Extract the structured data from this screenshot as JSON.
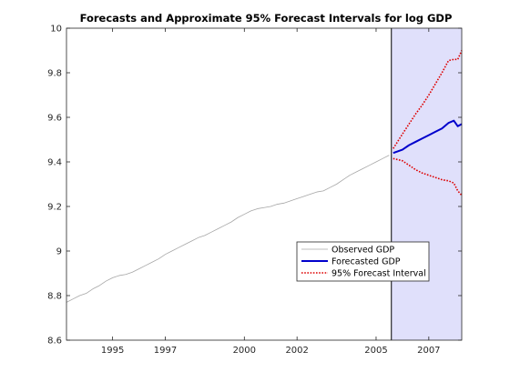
{
  "chart_data": {
    "type": "line",
    "title": "Forecasts and Approximate 95%  Forecast Intervals for log GDP",
    "xlabel": "",
    "ylabel": "",
    "xlim": [
      1993.25,
      2008.25
    ],
    "ylim": [
      8.6,
      10
    ],
    "x_ticks": [
      1995,
      1997,
      2000,
      2002,
      2005,
      2007
    ],
    "x_tick_labels": [
      "1995",
      "1997",
      "2000",
      "2002",
      "2005",
      "2007"
    ],
    "y_ticks": [
      8.6,
      8.8,
      9,
      9.2,
      9.4,
      9.6,
      9.8,
      10
    ],
    "y_tick_labels": [
      "8.6",
      "8.8",
      "9",
      "9.2",
      "9.4",
      "9.6",
      "9.8",
      "10"
    ],
    "grid": false,
    "forecast_region": {
      "x_start": 2005.58,
      "x_end": 2008.25,
      "fill": "#e0e0fb",
      "border": "#000000"
    },
    "legend": {
      "placement": "lower-right",
      "entries": [
        {
          "label": "Observed GDP",
          "color": "#a6a6a6",
          "style": "solid"
        },
        {
          "label": "Forecasted GDP",
          "color": "#0000cc",
          "style": "solid"
        },
        {
          "label": "95% Forecast Interval",
          "color": "#dd0000",
          "style": "dotted"
        }
      ]
    },
    "series": [
      {
        "name": "Observed GDP",
        "color": "#a6a6a6",
        "style": "solid",
        "x": [
          1993.25,
          1993.5,
          1993.75,
          1994.0,
          1994.25,
          1994.5,
          1994.75,
          1995.0,
          1995.25,
          1995.5,
          1995.75,
          1996.0,
          1996.25,
          1996.5,
          1996.75,
          1997.0,
          1997.25,
          1997.5,
          1997.75,
          1998.0,
          1998.25,
          1998.5,
          1998.75,
          1999.0,
          1999.25,
          1999.5,
          1999.75,
          2000.0,
          2000.25,
          2000.5,
          2000.75,
          2001.0,
          2001.25,
          2001.5,
          2001.75,
          2002.0,
          2002.25,
          2002.5,
          2002.75,
          2003.0,
          2003.25,
          2003.5,
          2003.75,
          2004.0,
          2004.25,
          2004.5,
          2004.75,
          2005.0,
          2005.25,
          2005.5
        ],
        "values": [
          8.77,
          8.785,
          8.8,
          8.81,
          8.83,
          8.845,
          8.865,
          8.88,
          8.89,
          8.895,
          8.905,
          8.92,
          8.935,
          8.95,
          8.965,
          8.985,
          9.0,
          9.015,
          9.03,
          9.045,
          9.06,
          9.07,
          9.085,
          9.1,
          9.115,
          9.13,
          9.15,
          9.165,
          9.18,
          9.19,
          9.195,
          9.2,
          9.21,
          9.215,
          9.225,
          9.235,
          9.245,
          9.255,
          9.265,
          9.27,
          9.285,
          9.3,
          9.32,
          9.34,
          9.355,
          9.37,
          9.385,
          9.4,
          9.415,
          9.43
        ]
      },
      {
        "name": "Forecasted GDP",
        "color": "#0000cc",
        "style": "solid",
        "x": [
          2005.65,
          2006.0,
          2006.25,
          2006.5,
          2006.75,
          2007.0,
          2007.25,
          2007.5,
          2007.75,
          2007.95,
          2008.1,
          2008.25
        ],
        "values": [
          9.44,
          9.455,
          9.475,
          9.49,
          9.505,
          9.52,
          9.535,
          9.55,
          9.575,
          9.585,
          9.56,
          9.57
        ]
      },
      {
        "name": "95% Forecast Interval (upper)",
        "color": "#dd0000",
        "style": "dotted",
        "x": [
          2005.65,
          2006.0,
          2006.25,
          2006.5,
          2006.75,
          2007.0,
          2007.25,
          2007.5,
          2007.75,
          2007.95,
          2008.1,
          2008.25
        ],
        "values": [
          9.46,
          9.525,
          9.57,
          9.615,
          9.655,
          9.7,
          9.75,
          9.8,
          9.855,
          9.86,
          9.86,
          9.9
        ]
      },
      {
        "name": "95% Forecast Interval (lower)",
        "color": "#dd0000",
        "style": "dotted",
        "x": [
          2005.65,
          2006.0,
          2006.25,
          2006.5,
          2006.75,
          2007.0,
          2007.25,
          2007.5,
          2007.75,
          2007.95,
          2008.1,
          2008.25
        ],
        "values": [
          9.415,
          9.405,
          9.385,
          9.365,
          9.35,
          9.34,
          9.33,
          9.32,
          9.315,
          9.305,
          9.27,
          9.25
        ]
      }
    ]
  }
}
